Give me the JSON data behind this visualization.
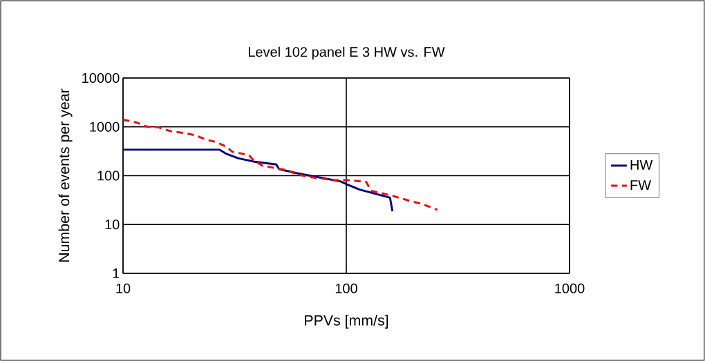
{
  "chart_data": {
    "type": "line",
    "title": "Level 102 panel E 3 HW vs. FW",
    "xlabel": "PPVs [mm/s]",
    "ylabel": "Number of events per year",
    "log": "xy",
    "xlim": [
      10,
      1000
    ],
    "ylim": [
      1,
      10000
    ],
    "xticks": [
      10,
      100,
      1000
    ],
    "yticks": [
      1,
      10,
      100,
      1000,
      10000
    ],
    "grid": true,
    "legend": "right",
    "marker": "none",
    "series": [
      {
        "name": "HW",
        "color": "#000080",
        "line_style": "solid",
        "x": [
          10,
          27.1,
          28.9,
          32.9,
          38.8,
          48.6,
          50,
          60.3,
          75.7,
          94.4,
          100,
          114.6,
          157,
          161
        ],
        "values": [
          340,
          340,
          283,
          226,
          193,
          170,
          136,
          112,
          92,
          76,
          67,
          52,
          35.4,
          18.7
        ]
      },
      {
        "name": "FW",
        "color": "#ff0000",
        "line_style": "dashed",
        "x": [
          10,
          11.4,
          12.9,
          14.4,
          16.4,
          19,
          21.1,
          23.5,
          26.2,
          29.1,
          30.8,
          36.6,
          38.5,
          42.1,
          55.3,
          58.3,
          67,
          82.8,
          88,
          104,
          123,
          129,
          140,
          160,
          190,
          217,
          256
        ],
        "values": [
          1400,
          1240,
          1000,
          980,
          810,
          740,
          670,
          550,
          485,
          390,
          310,
          265,
          205,
          160,
          127,
          112,
          95,
          84,
          81,
          81,
          74,
          49,
          45,
          39,
          31,
          26.5,
          20
        ]
      }
    ]
  }
}
